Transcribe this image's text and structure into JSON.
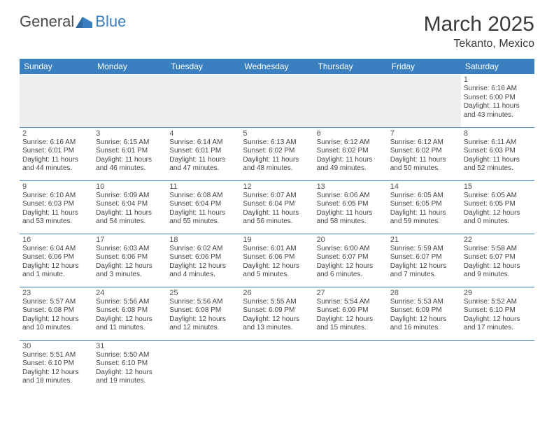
{
  "brand": {
    "name1": "General",
    "name2": "Blue"
  },
  "title": "March 2025",
  "location": "Tekanto, Mexico",
  "colors": {
    "header_bg": "#3a7fbf",
    "header_text": "#ffffff",
    "cell_border": "#3a7fbf",
    "empty_bg": "#eeeeee",
    "text": "#444444",
    "logo_blue": "#3a7fbf"
  },
  "weekdays": [
    "Sunday",
    "Monday",
    "Tuesday",
    "Wednesday",
    "Thursday",
    "Friday",
    "Saturday"
  ],
  "days": {
    "1": {
      "sunrise": "6:16 AM",
      "sunset": "6:00 PM",
      "daylight": "11 hours and 43 minutes."
    },
    "2": {
      "sunrise": "6:16 AM",
      "sunset": "6:01 PM",
      "daylight": "11 hours and 44 minutes."
    },
    "3": {
      "sunrise": "6:15 AM",
      "sunset": "6:01 PM",
      "daylight": "11 hours and 46 minutes."
    },
    "4": {
      "sunrise": "6:14 AM",
      "sunset": "6:01 PM",
      "daylight": "11 hours and 47 minutes."
    },
    "5": {
      "sunrise": "6:13 AM",
      "sunset": "6:02 PM",
      "daylight": "11 hours and 48 minutes."
    },
    "6": {
      "sunrise": "6:12 AM",
      "sunset": "6:02 PM",
      "daylight": "11 hours and 49 minutes."
    },
    "7": {
      "sunrise": "6:12 AM",
      "sunset": "6:02 PM",
      "daylight": "11 hours and 50 minutes."
    },
    "8": {
      "sunrise": "6:11 AM",
      "sunset": "6:03 PM",
      "daylight": "11 hours and 52 minutes."
    },
    "9": {
      "sunrise": "6:10 AM",
      "sunset": "6:03 PM",
      "daylight": "11 hours and 53 minutes."
    },
    "10": {
      "sunrise": "6:09 AM",
      "sunset": "6:04 PM",
      "daylight": "11 hours and 54 minutes."
    },
    "11": {
      "sunrise": "6:08 AM",
      "sunset": "6:04 PM",
      "daylight": "11 hours and 55 minutes."
    },
    "12": {
      "sunrise": "6:07 AM",
      "sunset": "6:04 PM",
      "daylight": "11 hours and 56 minutes."
    },
    "13": {
      "sunrise": "6:06 AM",
      "sunset": "6:05 PM",
      "daylight": "11 hours and 58 minutes."
    },
    "14": {
      "sunrise": "6:05 AM",
      "sunset": "6:05 PM",
      "daylight": "11 hours and 59 minutes."
    },
    "15": {
      "sunrise": "6:05 AM",
      "sunset": "6:05 PM",
      "daylight": "12 hours and 0 minutes."
    },
    "16": {
      "sunrise": "6:04 AM",
      "sunset": "6:06 PM",
      "daylight": "12 hours and 1 minute."
    },
    "17": {
      "sunrise": "6:03 AM",
      "sunset": "6:06 PM",
      "daylight": "12 hours and 3 minutes."
    },
    "18": {
      "sunrise": "6:02 AM",
      "sunset": "6:06 PM",
      "daylight": "12 hours and 4 minutes."
    },
    "19": {
      "sunrise": "6:01 AM",
      "sunset": "6:06 PM",
      "daylight": "12 hours and 5 minutes."
    },
    "20": {
      "sunrise": "6:00 AM",
      "sunset": "6:07 PM",
      "daylight": "12 hours and 6 minutes."
    },
    "21": {
      "sunrise": "5:59 AM",
      "sunset": "6:07 PM",
      "daylight": "12 hours and 7 minutes."
    },
    "22": {
      "sunrise": "5:58 AM",
      "sunset": "6:07 PM",
      "daylight": "12 hours and 9 minutes."
    },
    "23": {
      "sunrise": "5:57 AM",
      "sunset": "6:08 PM",
      "daylight": "12 hours and 10 minutes."
    },
    "24": {
      "sunrise": "5:56 AM",
      "sunset": "6:08 PM",
      "daylight": "12 hours and 11 minutes."
    },
    "25": {
      "sunrise": "5:56 AM",
      "sunset": "6:08 PM",
      "daylight": "12 hours and 12 minutes."
    },
    "26": {
      "sunrise": "5:55 AM",
      "sunset": "6:09 PM",
      "daylight": "12 hours and 13 minutes."
    },
    "27": {
      "sunrise": "5:54 AM",
      "sunset": "6:09 PM",
      "daylight": "12 hours and 15 minutes."
    },
    "28": {
      "sunrise": "5:53 AM",
      "sunset": "6:09 PM",
      "daylight": "12 hours and 16 minutes."
    },
    "29": {
      "sunrise": "5:52 AM",
      "sunset": "6:10 PM",
      "daylight": "12 hours and 17 minutes."
    },
    "30": {
      "sunrise": "5:51 AM",
      "sunset": "6:10 PM",
      "daylight": "12 hours and 18 minutes."
    },
    "31": {
      "sunrise": "5:50 AM",
      "sunset": "6:10 PM",
      "daylight": "12 hours and 19 minutes."
    }
  },
  "labels": {
    "sunrise": "Sunrise:",
    "sunset": "Sunset:",
    "daylight": "Daylight:"
  },
  "grid": [
    [
      null,
      null,
      null,
      null,
      null,
      null,
      "1"
    ],
    [
      "2",
      "3",
      "4",
      "5",
      "6",
      "7",
      "8"
    ],
    [
      "9",
      "10",
      "11",
      "12",
      "13",
      "14",
      "15"
    ],
    [
      "16",
      "17",
      "18",
      "19",
      "20",
      "21",
      "22"
    ],
    [
      "23",
      "24",
      "25",
      "26",
      "27",
      "28",
      "29"
    ],
    [
      "30",
      "31",
      null,
      null,
      null,
      null,
      null
    ]
  ]
}
